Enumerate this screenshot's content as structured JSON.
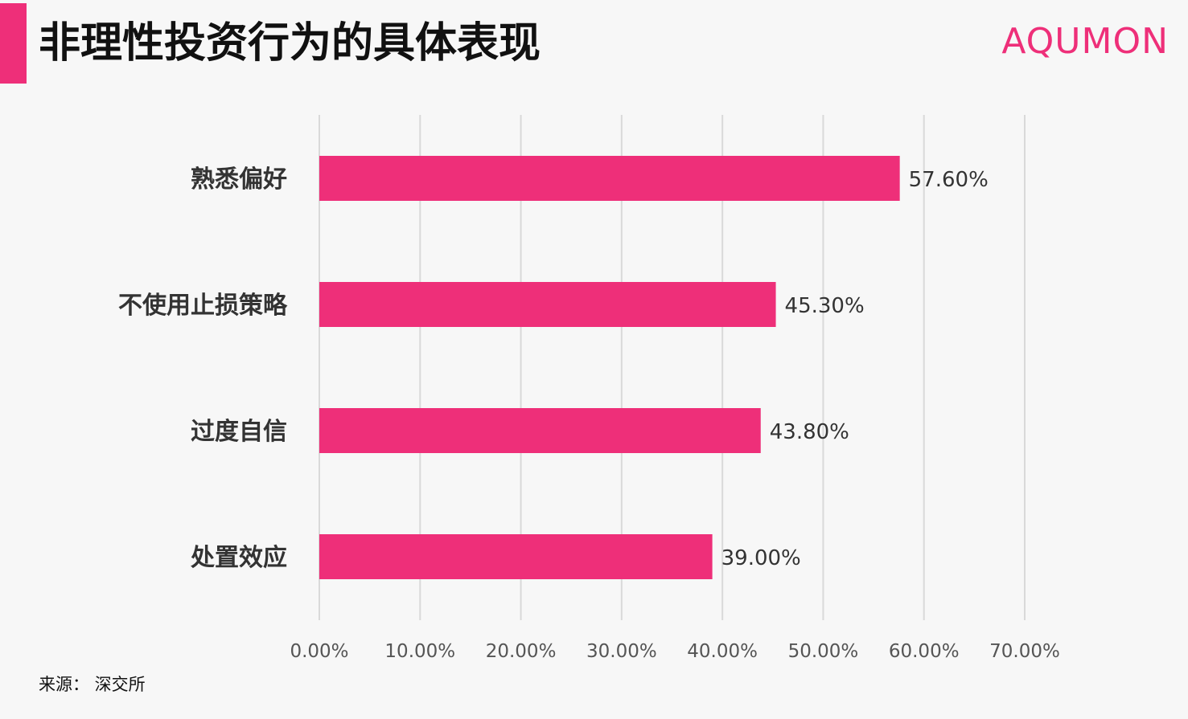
{
  "header": {
    "title": "非理性投资行为的具体表现",
    "logo_text": "AQUMON",
    "accent_color": "#ee2f79"
  },
  "footer": {
    "source": "来源： 深交所"
  },
  "chart_data": {
    "type": "bar",
    "orientation": "horizontal",
    "title": "",
    "xlabel": "",
    "ylabel": "",
    "categories": [
      "熟悉偏好",
      "不使用止损策略",
      "过度自信",
      "处置效应"
    ],
    "values": [
      57.6,
      45.3,
      43.8,
      39.0
    ],
    "value_labels": [
      "57.60%",
      "45.30%",
      "43.80%",
      "39.00%"
    ],
    "xlim": [
      0,
      70
    ],
    "x_ticks": [
      0,
      10,
      20,
      30,
      40,
      50,
      60,
      70
    ],
    "x_tick_labels": [
      "0.00%",
      "10.00%",
      "20.00%",
      "30.00%",
      "40.00%",
      "50.00%",
      "60.00%",
      "70.00%"
    ],
    "grid": "vertical",
    "legend": "none",
    "bar_color": "#ee2f79",
    "grid_color": "#d9d9d9"
  }
}
